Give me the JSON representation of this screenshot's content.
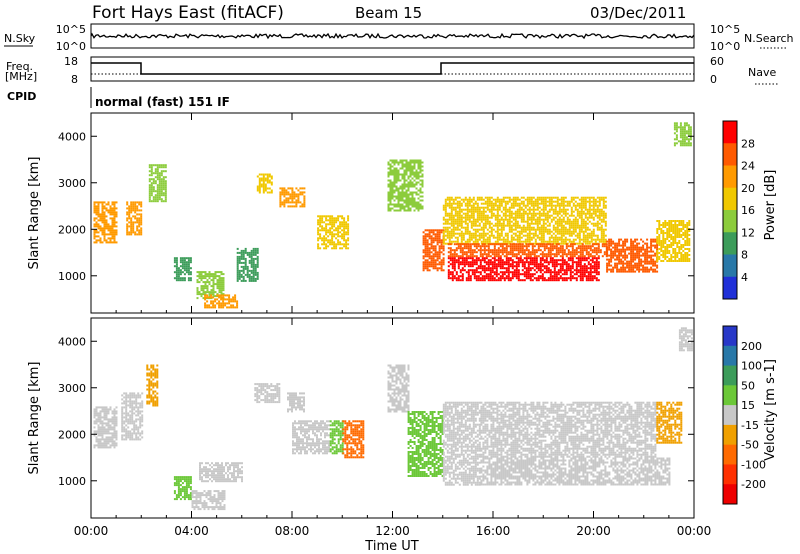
{
  "header": {
    "station": "Fort Hays East (fitACF)",
    "beam": "Beam 15",
    "date": "03/Dec/2011"
  },
  "top_panels": {
    "nsky_label": "N.Sky",
    "nsearch_label": "N.Search",
    "nsky_ticks": [
      "10^5",
      "10^0"
    ],
    "nsearch_ticks": [
      "10^5",
      "10^0"
    ],
    "freq_label": "Freq.",
    "freq_unit": "[MHz]",
    "freq_ticks": [
      "18",
      "8"
    ],
    "nave_label": "Nave",
    "nave_ticks": [
      "60",
      "0"
    ],
    "cpid_label": "CPID",
    "cpid_text": "normal (fast) 151 IF"
  },
  "chart_data": [
    {
      "type": "heatmap",
      "name": "power",
      "ylabel": "Slant Range [km]",
      "xlabel": "Time UT",
      "ylim": [
        200,
        4500
      ],
      "yticks": [
        "4000",
        "3000",
        "2000",
        "1000"
      ],
      "xticks": [
        "00:00",
        "04:00",
        "08:00",
        "12:00",
        "16:00",
        "20:00",
        "00:00"
      ],
      "colorbar": {
        "label": "Power [dB]",
        "ticks": [
          "28",
          "24",
          "20",
          "16",
          "12",
          "8",
          "4"
        ],
        "colors": [
          "#ff0000",
          "#ff5a00",
          "#ff9a00",
          "#f0c800",
          "#8ccc3c",
          "#3c9c5a",
          "#2878a8",
          "#2030d8"
        ]
      },
      "regions": [
        {
          "t": [
            0.1,
            1.0
          ],
          "r": [
            1700,
            2600
          ],
          "v": 18
        },
        {
          "t": [
            1.4,
            2.0
          ],
          "r": [
            1900,
            2600
          ],
          "v": 20
        },
        {
          "t": [
            2.3,
            3.0
          ],
          "r": [
            2600,
            3400
          ],
          "v": 10
        },
        {
          "t": [
            3.3,
            4.0
          ],
          "r": [
            900,
            1400
          ],
          "v": 8
        },
        {
          "t": [
            4.2,
            5.3
          ],
          "r": [
            500,
            1100
          ],
          "v": 12
        },
        {
          "t": [
            4.5,
            5.8
          ],
          "r": [
            300,
            600
          ],
          "v": 18
        },
        {
          "t": [
            5.8,
            6.6
          ],
          "r": [
            900,
            1600
          ],
          "v": 8
        },
        {
          "t": [
            6.6,
            7.2
          ],
          "r": [
            2800,
            3200
          ],
          "v": 14
        },
        {
          "t": [
            7.5,
            8.5
          ],
          "r": [
            2500,
            2900
          ],
          "v": 18
        },
        {
          "t": [
            9.0,
            10.2
          ],
          "r": [
            1600,
            2300
          ],
          "v": 14
        },
        {
          "t": [
            11.8,
            13.2
          ],
          "r": [
            2400,
            3500
          ],
          "v": 10
        },
        {
          "t": [
            13.2,
            14.0
          ],
          "r": [
            1100,
            2000
          ],
          "v": 22
        },
        {
          "t": [
            14.0,
            20.5
          ],
          "r": [
            1700,
            2700
          ],
          "v": 14
        },
        {
          "t": [
            14.2,
            20.5
          ],
          "r": [
            1400,
            1700
          ],
          "v": 22
        },
        {
          "t": [
            14.2,
            20.2
          ],
          "r": [
            900,
            1400
          ],
          "v": 28
        },
        {
          "t": [
            20.5,
            22.5
          ],
          "r": [
            1100,
            1800
          ],
          "v": 24
        },
        {
          "t": [
            22.5,
            23.8
          ],
          "r": [
            1300,
            2200
          ],
          "v": 16
        },
        {
          "t": [
            23.2,
            23.9
          ],
          "r": [
            3800,
            4300
          ],
          "v": 12
        }
      ]
    },
    {
      "type": "heatmap",
      "name": "velocity",
      "ylabel": "Slant Range [km]",
      "xlabel": "Time UT",
      "ylim": [
        200,
        4500
      ],
      "yticks": [
        "4000",
        "3000",
        "2000",
        "1000"
      ],
      "xticks": [
        "00:00",
        "04:00",
        "08:00",
        "12:00",
        "16:00",
        "20:00",
        "00:00"
      ],
      "colorbar": {
        "label": "Velocity [m s-1]",
        "ticks": [
          "200",
          "100",
          "50",
          "15",
          "-15",
          "-50",
          "-100",
          "-200"
        ],
        "colors": [
          "#2838c8",
          "#2878a8",
          "#3c9c5a",
          "#6cc838",
          "#c8c8c8",
          "#f0a000",
          "#ff6a00",
          "#ff3000",
          "#ee0000"
        ]
      },
      "regions": [
        {
          "t": [
            0.1,
            1.0
          ],
          "r": [
            1700,
            2600
          ],
          "v": 0
        },
        {
          "t": [
            1.2,
            2.0
          ],
          "r": [
            1900,
            2900
          ],
          "v": 0
        },
        {
          "t": [
            2.2,
            2.6
          ],
          "r": [
            2600,
            3500
          ],
          "v": -40
        },
        {
          "t": [
            3.3,
            4.0
          ],
          "r": [
            600,
            1100
          ],
          "v": 40
        },
        {
          "t": [
            4.0,
            5.3
          ],
          "r": [
            400,
            800
          ],
          "v": 0
        },
        {
          "t": [
            4.3,
            6.0
          ],
          "r": [
            1000,
            1400
          ],
          "v": 0
        },
        {
          "t": [
            6.5,
            7.5
          ],
          "r": [
            2700,
            3100
          ],
          "v": 0
        },
        {
          "t": [
            7.8,
            8.5
          ],
          "r": [
            2500,
            2900
          ],
          "v": 0
        },
        {
          "t": [
            8.0,
            9.5
          ],
          "r": [
            1600,
            2300
          ],
          "v": 0
        },
        {
          "t": [
            9.5,
            10.0
          ],
          "r": [
            1600,
            2300
          ],
          "v": 40
        },
        {
          "t": [
            10.0,
            10.8
          ],
          "r": [
            1500,
            2300
          ],
          "v": -60
        },
        {
          "t": [
            11.8,
            12.6
          ],
          "r": [
            2500,
            3500
          ],
          "v": 0
        },
        {
          "t": [
            12.6,
            14.0
          ],
          "r": [
            1100,
            2500
          ],
          "v": 35
        },
        {
          "t": [
            14.0,
            15.5
          ],
          "r": [
            900,
            2700
          ],
          "v": 0
        },
        {
          "t": [
            15.5,
            23.0
          ],
          "r": [
            900,
            1500
          ],
          "v": 0
        },
        {
          "t": [
            15.5,
            22.5
          ],
          "r": [
            1500,
            2700
          ],
          "v": 0
        },
        {
          "t": [
            22.5,
            23.5
          ],
          "r": [
            1800,
            2700
          ],
          "v": -40
        },
        {
          "t": [
            23.4,
            23.9
          ],
          "r": [
            3800,
            4300
          ],
          "v": 0
        }
      ]
    }
  ]
}
